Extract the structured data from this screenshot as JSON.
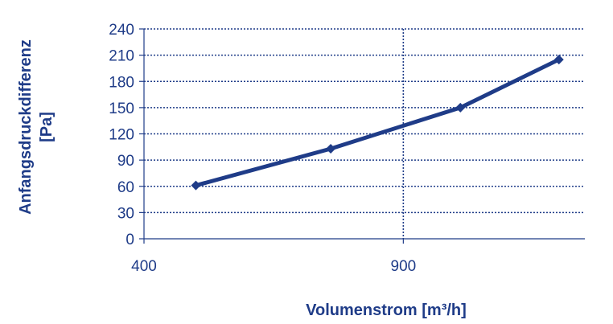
{
  "chart_data": {
    "type": "line",
    "title": "",
    "xlabel": "Volumenstrom [m³/h]",
    "ylabel_lines": [
      "Anfangsdruckdifferenz",
      "[Pa]"
    ],
    "xlim": [
      400,
      1250
    ],
    "ylim": [
      0,
      240
    ],
    "xticks": [
      400,
      900
    ],
    "yticks": [
      0,
      30,
      60,
      90,
      120,
      150,
      180,
      210,
      240
    ],
    "grid": true,
    "legend": "none",
    "colors": {
      "line": "#1f3c88",
      "text": "#1f3c88",
      "grid": "#1f3c88"
    },
    "series": [
      {
        "x": [
          500,
          760,
          1010,
          1200
        ],
        "y": [
          61,
          103,
          150,
          205
        ]
      }
    ]
  }
}
